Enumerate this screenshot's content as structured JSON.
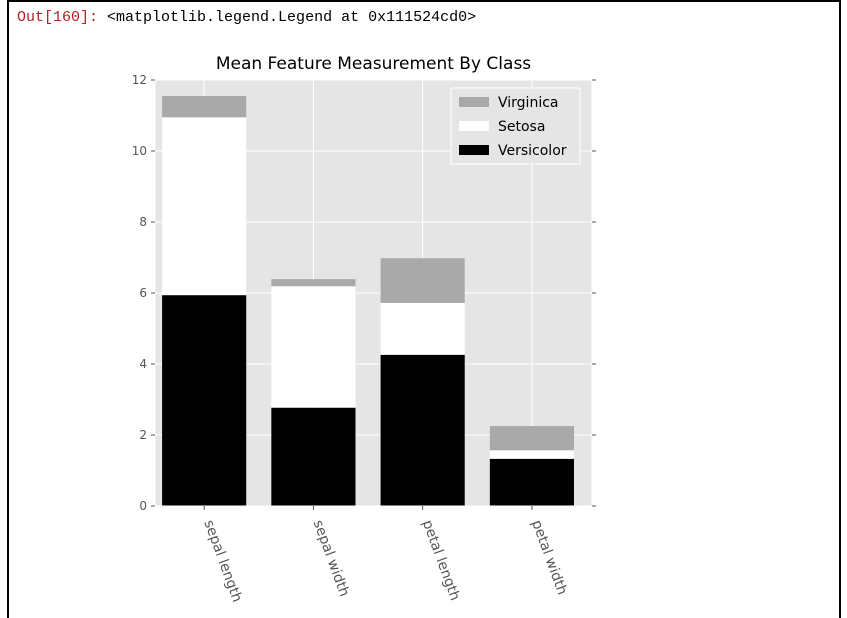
{
  "output": {
    "prompt": "Out[160]:",
    "text": "<matplotlib.legend.Legend at 0x111524cd0>"
  },
  "chart_data": {
    "type": "bar",
    "stacked": true,
    "title": "Mean Feature Measurement By Class",
    "xlabel": "",
    "ylabel": "",
    "categories": [
      "sepal length",
      "sepal width",
      "petal length",
      "petal width"
    ],
    "ylim": [
      0,
      12
    ],
    "yticks": [
      0,
      2,
      4,
      6,
      8,
      10,
      12
    ],
    "grid": true,
    "legend_position": "top-right",
    "series": [
      {
        "name": "Versicolor",
        "color": "#000000",
        "values": [
          5.94,
          2.77,
          4.26,
          1.33
        ]
      },
      {
        "name": "Setosa",
        "color": "#ffffff",
        "values": [
          5.01,
          3.42,
          1.46,
          0.24
        ]
      },
      {
        "name": "Virginica",
        "color": "#a9a9a9",
        "values": [
          0.6,
          0.2,
          1.26,
          0.68
        ]
      }
    ],
    "legend_order": [
      "Virginica",
      "Setosa",
      "Versicolor"
    ],
    "background": "#e5e5e5",
    "grid_color": "#ffffff"
  }
}
